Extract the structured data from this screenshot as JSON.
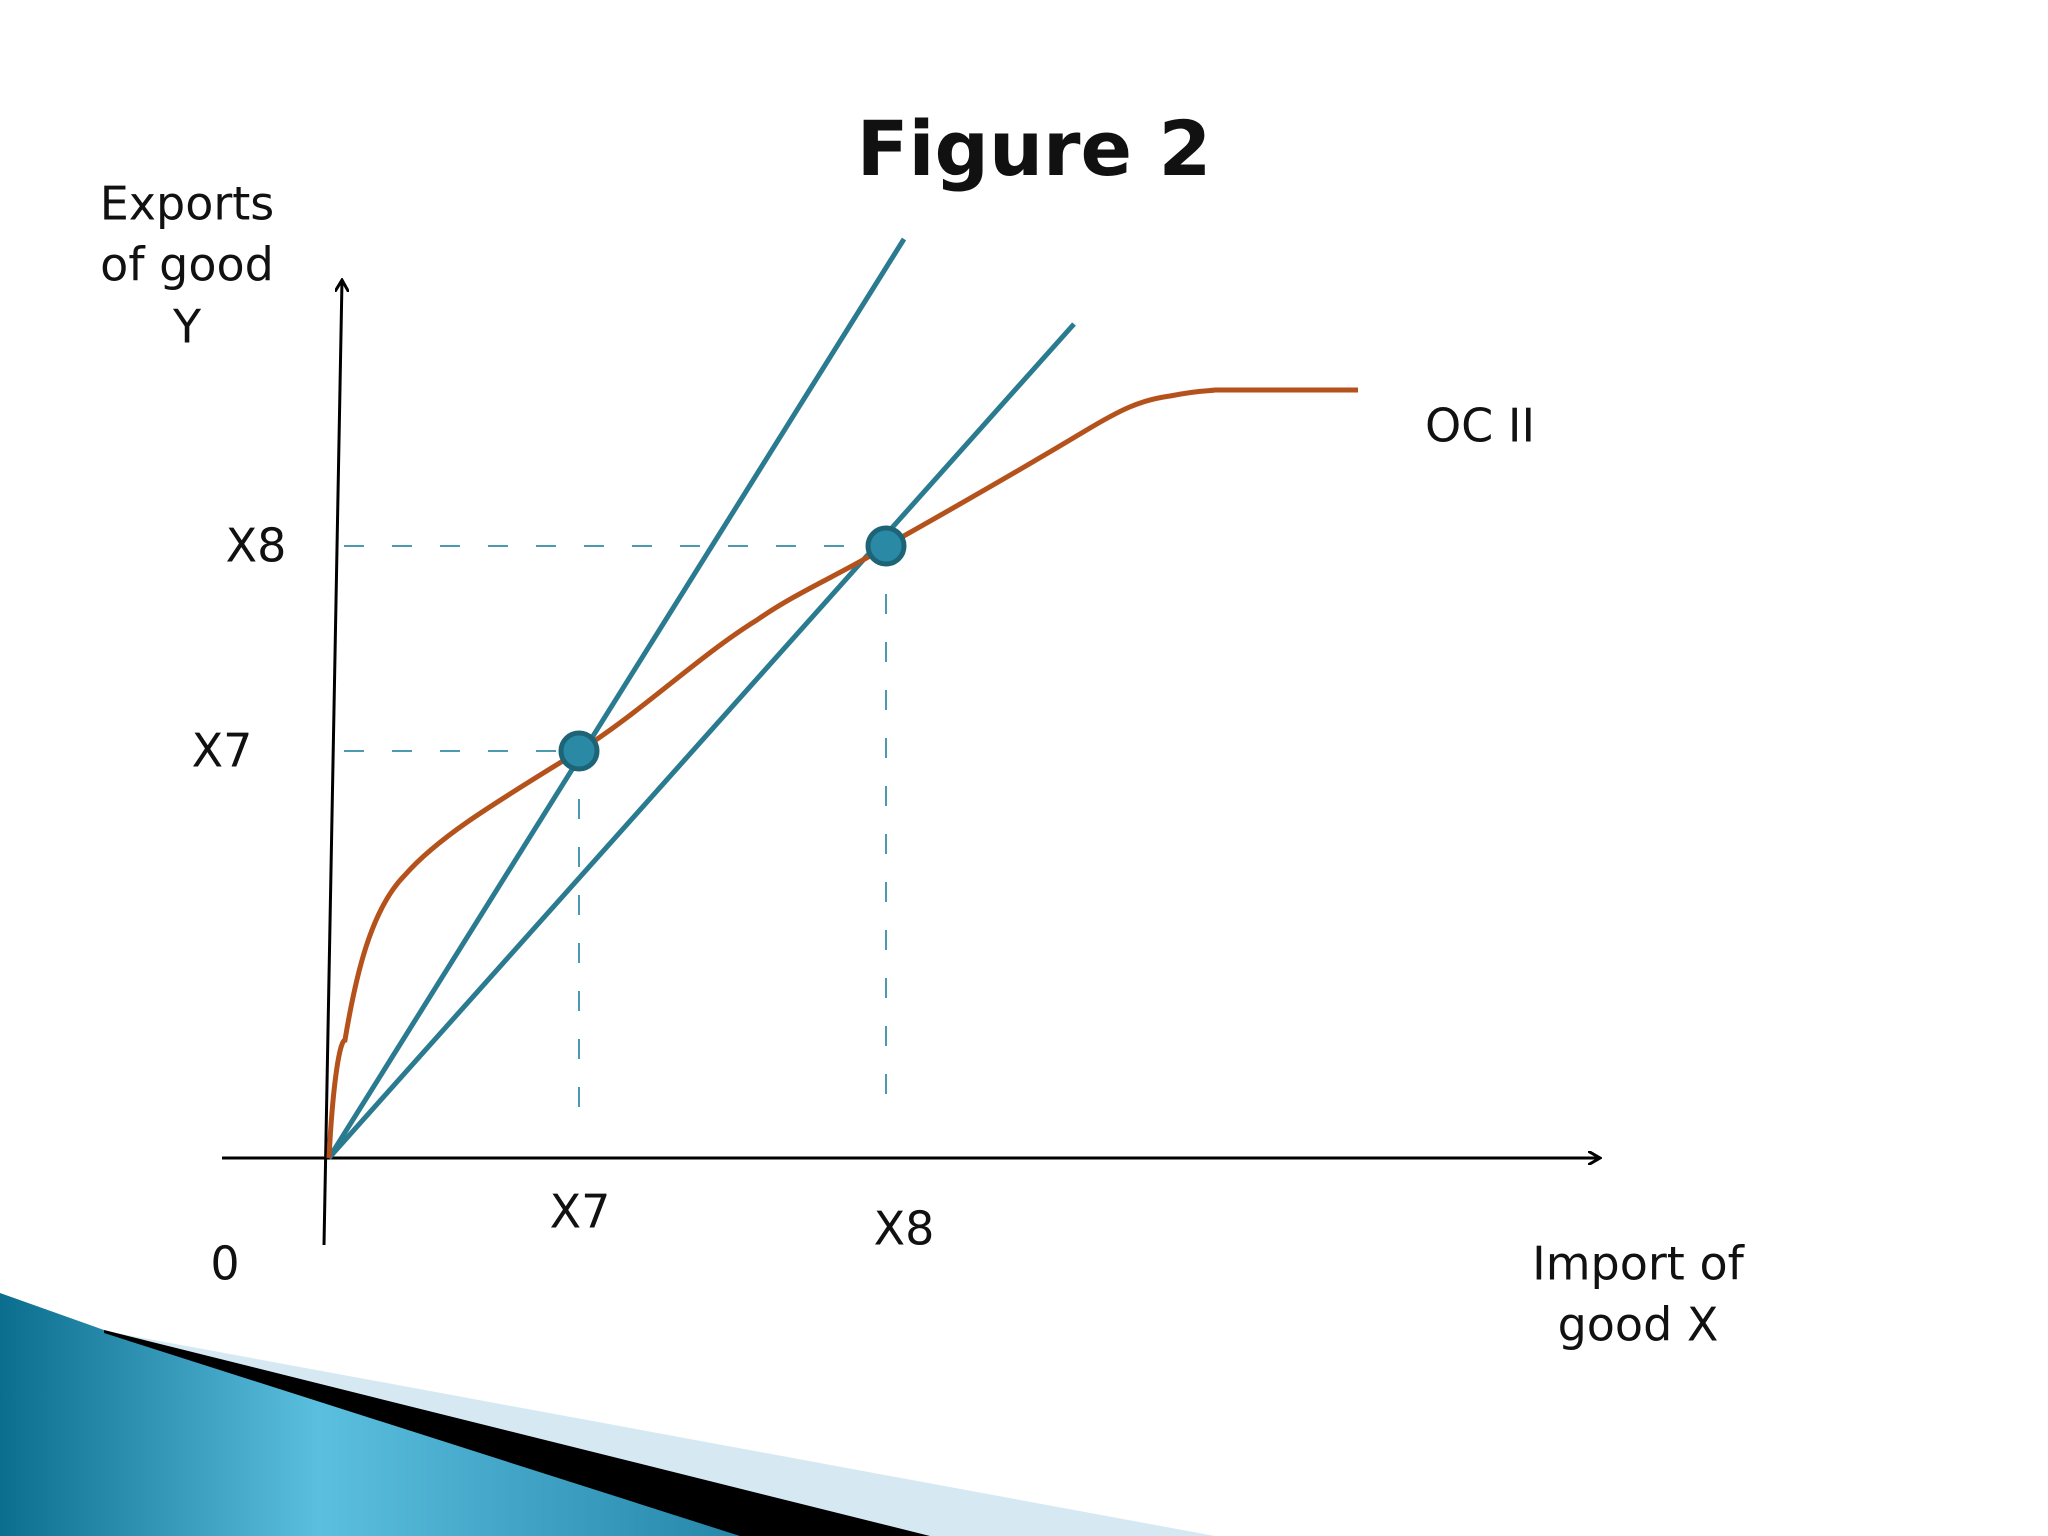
{
  "title": "Figure 2",
  "y_axis": {
    "label": [
      "Exports",
      "of good",
      "Y"
    ],
    "ticks": [
      "X8",
      "X7"
    ]
  },
  "x_axis": {
    "label": [
      "Import of",
      "good X"
    ],
    "ticks": [
      "X7",
      "X8"
    ]
  },
  "origin": "0",
  "curve_label": "OC II"
}
